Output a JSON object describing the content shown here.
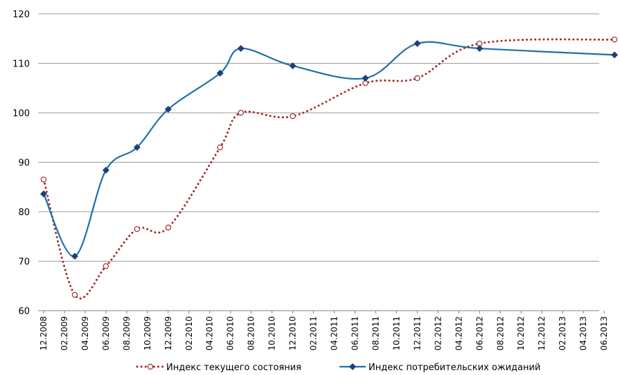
{
  "chart_data": {
    "type": "line",
    "title": "",
    "xlabel": "",
    "ylabel": "",
    "ylim": [
      60,
      120
    ],
    "yticks": [
      60,
      70,
      80,
      90,
      100,
      110,
      120
    ],
    "grid": "horizontal",
    "legend_position": "bottom",
    "xtick_labels": [
      "12.2008",
      "02.2009",
      "04.2009",
      "06.2009",
      "08.2009",
      "10.2009",
      "12.2009",
      "02.2010",
      "04.2010",
      "06.2010",
      "08.2010",
      "10.2010",
      "12.2010",
      "02.2011",
      "04.2011",
      "06.2011",
      "08.2011",
      "10.2011",
      "12.2011",
      "02.2012",
      "04.2012",
      "06.2012",
      "08.2012",
      "10.2012",
      "12.2012",
      "02.2013",
      "04.2013",
      "06.2013"
    ],
    "series": [
      {
        "name": "Индекс текущего состояния",
        "color": "#a52a2a",
        "style": "dotted",
        "marker": "open-circle",
        "points": [
          {
            "x": "12.2008",
            "y": 86.5
          },
          {
            "x": "03.2009",
            "y": 63.2
          },
          {
            "x": "06.2009",
            "y": 69.0
          },
          {
            "x": "09.2009",
            "y": 76.5
          },
          {
            "x": "12.2009",
            "y": 76.8
          },
          {
            "x": "05.2010",
            "y": 93.0
          },
          {
            "x": "07.2010",
            "y": 100.0
          },
          {
            "x": "12.2010",
            "y": 99.3
          },
          {
            "x": "07.2011",
            "y": 106.0
          },
          {
            "x": "12.2011",
            "y": 107.0
          },
          {
            "x": "06.2012",
            "y": 114.0
          },
          {
            "x": "07.2013",
            "y": 114.8
          }
        ]
      },
      {
        "name": "Индекс потребительских ожиданий",
        "color": "#1f6fa8",
        "marker_color": "#1f3f7a",
        "style": "solid",
        "marker": "diamond",
        "points": [
          {
            "x": "12.2008",
            "y": 83.6
          },
          {
            "x": "03.2009",
            "y": 71.0
          },
          {
            "x": "06.2009",
            "y": 88.4
          },
          {
            "x": "09.2009",
            "y": 93.0
          },
          {
            "x": "12.2009",
            "y": 100.7
          },
          {
            "x": "05.2010",
            "y": 108.0
          },
          {
            "x": "07.2010",
            "y": 113.0
          },
          {
            "x": "12.2010",
            "y": 109.5
          },
          {
            "x": "07.2011",
            "y": 107.0
          },
          {
            "x": "12.2011",
            "y": 114.0
          },
          {
            "x": "06.2012",
            "y": 113.0
          },
          {
            "x": "07.2013",
            "y": 111.7
          }
        ]
      }
    ]
  }
}
